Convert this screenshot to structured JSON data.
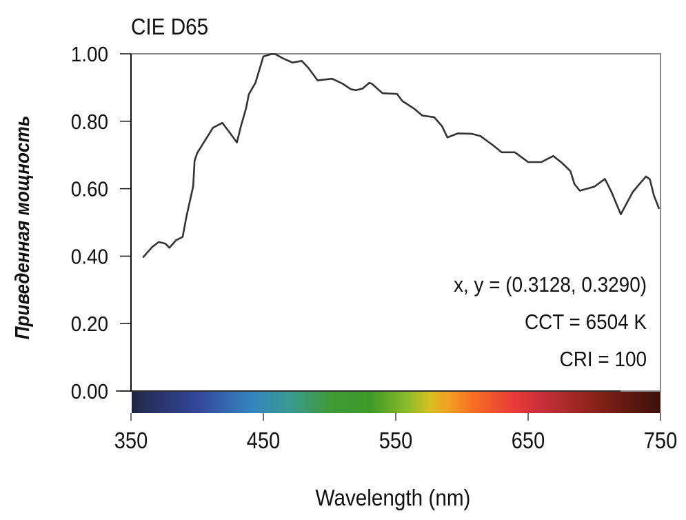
{
  "chart_data": {
    "type": "line",
    "title": "CIE D65",
    "xlabel": "Wavelength (nm)",
    "ylabel": "Приведенная мощность",
    "xlim": [
      350,
      750
    ],
    "ylim": [
      0,
      1
    ],
    "xticks": [
      "350",
      "450",
      "550",
      "650",
      "750"
    ],
    "xtick_values": [
      350,
      450,
      550,
      650,
      750
    ],
    "yticks": [
      "0.00",
      "0.20",
      "0.40",
      "0.60",
      "0.80",
      "1.00"
    ],
    "ytick_values": [
      0,
      0.2,
      0.4,
      0.6,
      0.8,
      1.0
    ],
    "grid": false,
    "annotations": [
      "x, y = (0.3128, 0.3290)",
      "CCT = 6504 K",
      "CRI = 100"
    ],
    "series": [
      {
        "name": "CIE D65",
        "color": "#333333",
        "x": [
          359,
          366,
          371,
          376,
          379,
          384,
          389,
          392,
          397,
          398,
          400,
          405,
          412,
          419,
          425,
          430,
          433,
          437,
          439,
          444,
          450,
          456,
          459,
          465,
          472,
          479,
          484,
          491,
          502,
          510,
          516,
          520,
          525,
          530,
          532,
          540,
          551,
          555,
          564,
          570,
          579,
          585,
          589,
          597,
          607,
          614,
          623,
          630,
          640,
          650,
          660,
          669,
          676,
          682,
          685,
          689,
          700,
          708,
          713,
          720,
          729,
          735,
          739,
          742,
          745,
          749
        ],
        "y": [
          0.396,
          0.427,
          0.442,
          0.437,
          0.425,
          0.447,
          0.457,
          0.519,
          0.607,
          0.682,
          0.706,
          0.737,
          0.781,
          0.795,
          0.764,
          0.737,
          0.785,
          0.839,
          0.88,
          0.914,
          0.992,
          0.999,
          0.999,
          0.986,
          0.974,
          0.979,
          0.958,
          0.921,
          0.926,
          0.911,
          0.895,
          0.892,
          0.897,
          0.914,
          0.911,
          0.883,
          0.881,
          0.86,
          0.837,
          0.817,
          0.812,
          0.785,
          0.752,
          0.764,
          0.763,
          0.756,
          0.73,
          0.708,
          0.708,
          0.679,
          0.679,
          0.697,
          0.675,
          0.652,
          0.614,
          0.594,
          0.606,
          0.629,
          0.59,
          0.524,
          0.59,
          0.618,
          0.636,
          0.628,
          0.58,
          0.54
        ]
      }
    ],
    "colorbar": {
      "stops_nm": [
        350,
        360,
        400,
        440,
        470,
        500,
        530,
        560,
        575,
        590,
        610,
        640,
        660,
        700,
        750
      ],
      "colors": [
        "#1e2440",
        "#262f5a",
        "#34479a",
        "#3584c2",
        "#3a9a90",
        "#3f9a38",
        "#3e9a28",
        "#8fbc28",
        "#d6c020",
        "#f2a020",
        "#f76a24",
        "#e83a3a",
        "#c8303a",
        "#8a2418",
        "#3a1008"
      ]
    }
  }
}
